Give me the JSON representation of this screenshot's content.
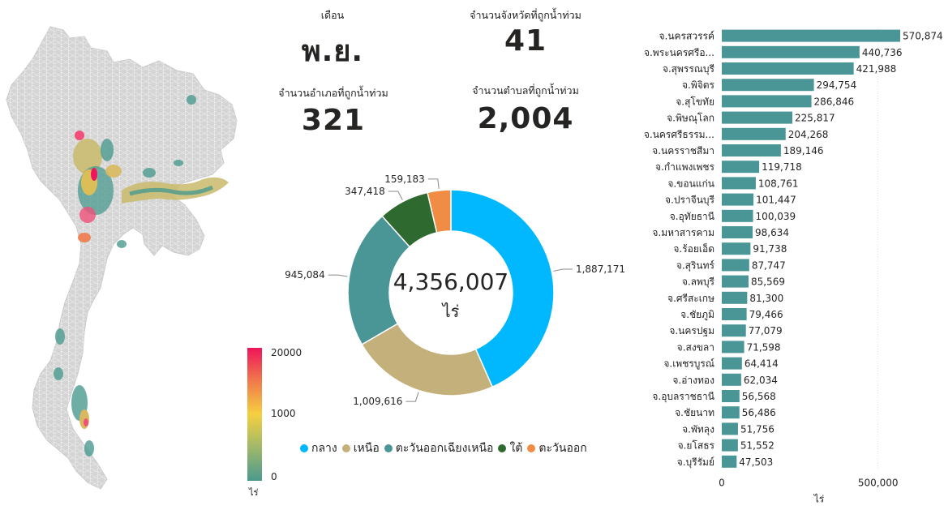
{
  "kpis": {
    "month": {
      "label": "เดือน",
      "value": "พ.ย."
    },
    "provinces": {
      "label": "จำนวนจังหวัดที่ถูกน้ำท่วม",
      "value": "41"
    },
    "districts": {
      "label": "จำนวนอำเภอที่ถูกน้ำท่วม",
      "value": "321"
    },
    "subdistricts": {
      "label": "จำนวนตำบลที่ถูกน้ำท่วม",
      "value": "2,004"
    }
  },
  "map_legend": {
    "max": "20000",
    "mid": "1000",
    "min": "0",
    "unit": "ไร่",
    "colors": [
      "#f0145a",
      "#f07a4a",
      "#f5d040",
      "#9fb86a",
      "#4a9a8e"
    ]
  },
  "colors": {
    "central": "#01b8fe",
    "north": "#c4b07a",
    "northeast": "#4a9595",
    "south": "#2e6a30",
    "east": "#f08c44",
    "bar": "#4a9595",
    "map_base": "#d4d4d4"
  },
  "chart_data": [
    {
      "type": "pie",
      "variant": "donut",
      "center_value": "4,356,007",
      "center_unit": "ไร่",
      "legend_position": "bottom",
      "slices": [
        {
          "name": "กลาง",
          "value": 1887171,
          "label": "1,887,171",
          "color": "#01b8fe"
        },
        {
          "name": "เหนือ",
          "value": 1009616,
          "label": "1,009,616",
          "color": "#c4b07a"
        },
        {
          "name": "ตะวันออกเฉียงเหนือ",
          "value": 945084,
          "label": "945,084",
          "color": "#4a9595"
        },
        {
          "name": "ใต้",
          "value": 347418,
          "label": "347,418",
          "color": "#2e6a30"
        },
        {
          "name": "ตะวันออก",
          "value": 159183,
          "label": "159,183",
          "color": "#f08c44"
        }
      ]
    },
    {
      "type": "bar",
      "orientation": "horizontal",
      "xlabel": "ไร่",
      "xlim": [
        0,
        570874
      ],
      "xticks": [
        "0",
        "500,000"
      ],
      "grid": true,
      "categories": [
        "จ.นครสวรรค์",
        "จ.พระนครศรีอ...",
        "จ.สุพรรณบุรี",
        "จ.พิจิตร",
        "จ.สุโขทัย",
        "จ.พิษณุโลก",
        "จ.นครศรีธรรม...",
        "จ.นครราชสีมา",
        "จ.กำแพงเพชร",
        "จ.ขอนแก่น",
        "จ.ปราจีนบุรี",
        "จ.อุทัยธานี",
        "จ.มหาสารคาม",
        "จ.ร้อยเอ็ด",
        "จ.สุรินทร์",
        "จ.ลพบุรี",
        "จ.ศรีสะเกษ",
        "จ.ชัยภูมิ",
        "จ.นครปฐม",
        "จ.สงขลา",
        "จ.เพชรบูรณ์",
        "จ.อ่างทอง",
        "จ.อุบลราชธานี",
        "จ.ชัยนาท",
        "จ.พัทลุง",
        "จ.ยโสธร",
        "จ.บุรีรัมย์"
      ],
      "values": [
        570874,
        440736,
        421988,
        294754,
        286846,
        225817,
        204268,
        189146,
        119718,
        108761,
        101447,
        100039,
        98634,
        91738,
        87747,
        85569,
        81300,
        79466,
        77079,
        71598,
        64414,
        62034,
        56568,
        56486,
        51756,
        51552,
        47503
      ],
      "labels": [
        "570,874",
        "440,736",
        "421,988",
        "294,754",
        "286,846",
        "225,817",
        "204,268",
        "189,146",
        "119,718",
        "108,761",
        "101,447",
        "100,039",
        "98,634",
        "91,738",
        "87,747",
        "85,569",
        "81,300",
        "79,466",
        "77,079",
        "71,598",
        "64,414",
        "62,034",
        "56,568",
        "56,486",
        "51,756",
        "51,552",
        "47,503"
      ]
    }
  ]
}
